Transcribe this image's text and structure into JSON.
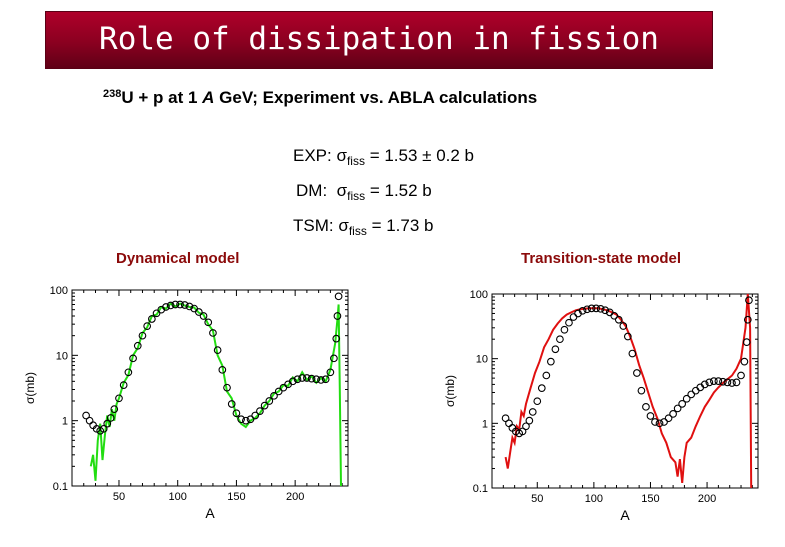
{
  "slide": {
    "title": "Role of dissipation in fission",
    "subtitle_sup": "238",
    "subtitle_pre": "U + p at 1 ",
    "subtitle_italic": "A",
    "subtitle_post": " GeV; Experiment vs. ABLA calculations"
  },
  "equations": [
    {
      "label": "EXP: ",
      "symbol": "σ",
      "sub": "fiss",
      "value": " = 1.53 ± 0.2 b"
    },
    {
      "label": "DM:  ",
      "symbol": "σ",
      "sub": "fiss",
      "value": " = 1.52 b"
    },
    {
      "label": "TSM: ",
      "symbol": "σ",
      "sub": "fiss",
      "value": " = 1.73 b"
    }
  ],
  "labels": {
    "left_model": "Dynamical model",
    "right_model": "Transition-state model"
  },
  "colors": {
    "title_bg": "#8a0020",
    "model_label": "#8b0a0a",
    "dm_curve": "#22dd11",
    "tsm_curve": "#e01010",
    "exp_points": "#000000"
  },
  "chart_data": [
    {
      "type": "scatter",
      "title": "Dynamical model",
      "xlabel": "A",
      "ylabel": "σ(mb)",
      "yscale": "log",
      "xlim": [
        10,
        245
      ],
      "ylim": [
        0.1,
        100
      ],
      "xticks": [
        50,
        100,
        150,
        200
      ],
      "xtick_labels": [
        "50",
        "100",
        "150",
        "200"
      ],
      "yticks": [
        0.1,
        1,
        10,
        100
      ],
      "ytick_labels": [
        "0.1",
        "1",
        "10",
        "100"
      ],
      "series": [
        {
          "name": "Experiment",
          "style": "open-circles",
          "x": [
            22,
            25,
            28,
            31,
            34,
            37,
            40,
            43,
            46,
            50,
            54,
            58,
            62,
            66,
            70,
            74,
            78,
            82,
            86,
            90,
            94,
            98,
            102,
            106,
            110,
            114,
            118,
            122,
            126,
            130,
            134,
            138,
            142,
            146,
            150,
            154,
            158,
            162,
            166,
            170,
            174,
            178,
            182,
            186,
            190,
            194,
            198,
            202,
            206,
            210,
            214,
            218,
            222,
            226,
            230,
            233,
            235,
            236,
            237
          ],
          "y": [
            1.2,
            1.0,
            0.85,
            0.75,
            0.7,
            0.75,
            0.9,
            1.1,
            1.5,
            2.2,
            3.5,
            5.5,
            9,
            14,
            20,
            28,
            36,
            44,
            50,
            55,
            58,
            60,
            60,
            59,
            56,
            52,
            46,
            40,
            32,
            22,
            12,
            6,
            3.2,
            1.8,
            1.3,
            1.05,
            1.0,
            1.05,
            1.2,
            1.4,
            1.7,
            2.0,
            2.4,
            2.8,
            3.2,
            3.6,
            4.0,
            4.3,
            4.5,
            4.5,
            4.4,
            4.3,
            4.2,
            4.3,
            5.5,
            9,
            18,
            40,
            80
          ]
        },
        {
          "name": "ABLA dynamical",
          "style": "line",
          "x": [
            26,
            28,
            30,
            32,
            34,
            36,
            38,
            40,
            42,
            44,
            46,
            48,
            50,
            54,
            58,
            62,
            66,
            70,
            74,
            78,
            82,
            86,
            90,
            94,
            98,
            102,
            106,
            110,
            114,
            118,
            122,
            126,
            130,
            134,
            138,
            142,
            146,
            150,
            154,
            158,
            162,
            166,
            170,
            174,
            178,
            182,
            186,
            190,
            194,
            198,
            202,
            206,
            210,
            214,
            218,
            222,
            226,
            230,
            234,
            236,
            237,
            238,
            239
          ],
          "y": [
            0.2,
            0.3,
            0.12,
            0.5,
            0.9,
            0.25,
            0.6,
            1.2,
            0.8,
            1.5,
            1.0,
            1.8,
            2.2,
            3.8,
            5.0,
            10,
            13,
            22,
            27,
            40,
            42,
            55,
            52,
            62,
            56,
            62,
            58,
            55,
            54,
            45,
            42,
            30,
            24,
            10,
            7,
            2.8,
            2.2,
            1.2,
            0.9,
            0.8,
            1.0,
            1.1,
            1.3,
            1.7,
            2.0,
            2.6,
            2.8,
            3.5,
            3.4,
            4.6,
            4.0,
            5.5,
            4.2,
            4.8,
            3.8,
            4.5,
            4.0,
            6.0,
            15,
            35,
            60,
            3,
            0.1
          ]
        }
      ]
    },
    {
      "type": "scatter",
      "title": "Transition-state model",
      "xlabel": "A",
      "ylabel": "σ(mb)",
      "yscale": "log",
      "xlim": [
        10,
        245
      ],
      "ylim": [
        0.1,
        100
      ],
      "xticks": [
        50,
        100,
        150,
        200
      ],
      "xtick_labels": [
        "50",
        "100",
        "150",
        "200"
      ],
      "yticks": [
        0.1,
        1,
        10,
        100
      ],
      "ytick_labels": [
        "0.1",
        "1",
        "10",
        "100"
      ],
      "series": [
        {
          "name": "Experiment",
          "style": "open-circles",
          "x": [
            22,
            25,
            28,
            31,
            34,
            37,
            40,
            43,
            46,
            50,
            54,
            58,
            62,
            66,
            70,
            74,
            78,
            82,
            86,
            90,
            94,
            98,
            102,
            106,
            110,
            114,
            118,
            122,
            126,
            130,
            134,
            138,
            142,
            146,
            150,
            154,
            158,
            162,
            166,
            170,
            174,
            178,
            182,
            186,
            190,
            194,
            198,
            202,
            206,
            210,
            214,
            218,
            222,
            226,
            230,
            233,
            235,
            236,
            237
          ],
          "y": [
            1.2,
            1.0,
            0.85,
            0.75,
            0.7,
            0.75,
            0.9,
            1.1,
            1.5,
            2.2,
            3.5,
            5.5,
            9,
            14,
            20,
            28,
            36,
            44,
            50,
            55,
            58,
            60,
            60,
            59,
            56,
            52,
            46,
            40,
            32,
            22,
            12,
            6,
            3.2,
            1.8,
            1.3,
            1.05,
            1.0,
            1.05,
            1.2,
            1.4,
            1.7,
            2.0,
            2.4,
            2.8,
            3.2,
            3.6,
            4.0,
            4.3,
            4.5,
            4.5,
            4.4,
            4.3,
            4.2,
            4.3,
            5.5,
            9,
            18,
            40,
            80
          ]
        },
        {
          "name": "ABLA transition-state",
          "style": "line",
          "x": [
            22,
            24,
            26,
            28,
            30,
            32,
            34,
            36,
            38,
            40,
            44,
            48,
            52,
            56,
            60,
            64,
            68,
            72,
            76,
            80,
            84,
            88,
            92,
            96,
            100,
            104,
            108,
            112,
            116,
            120,
            124,
            128,
            132,
            136,
            140,
            144,
            148,
            152,
            156,
            160,
            164,
            168,
            172,
            174,
            176,
            178,
            180,
            182,
            186,
            190,
            194,
            198,
            202,
            206,
            210,
            214,
            218,
            222,
            226,
            230,
            234,
            236,
            238,
            239
          ],
          "y": [
            0.3,
            0.2,
            0.35,
            0.6,
            0.5,
            0.9,
            0.8,
            1.5,
            1.3,
            2.0,
            3.5,
            6.0,
            9,
            15,
            20,
            28,
            35,
            42,
            48,
            52,
            56,
            58,
            59,
            60,
            60,
            60,
            58,
            56,
            52,
            48,
            40,
            32,
            22,
            14,
            8,
            5,
            3,
            1.8,
            1.2,
            0.7,
            0.5,
            0.3,
            0.25,
            0.15,
            0.28,
            0.12,
            0.3,
            0.5,
            0.6,
            0.9,
            1.3,
            1.8,
            2.3,
            3.0,
            3.6,
            4.2,
            4.8,
            5.5,
            7,
            10,
            30,
            100,
            30,
            0.1
          ]
        }
      ]
    }
  ]
}
